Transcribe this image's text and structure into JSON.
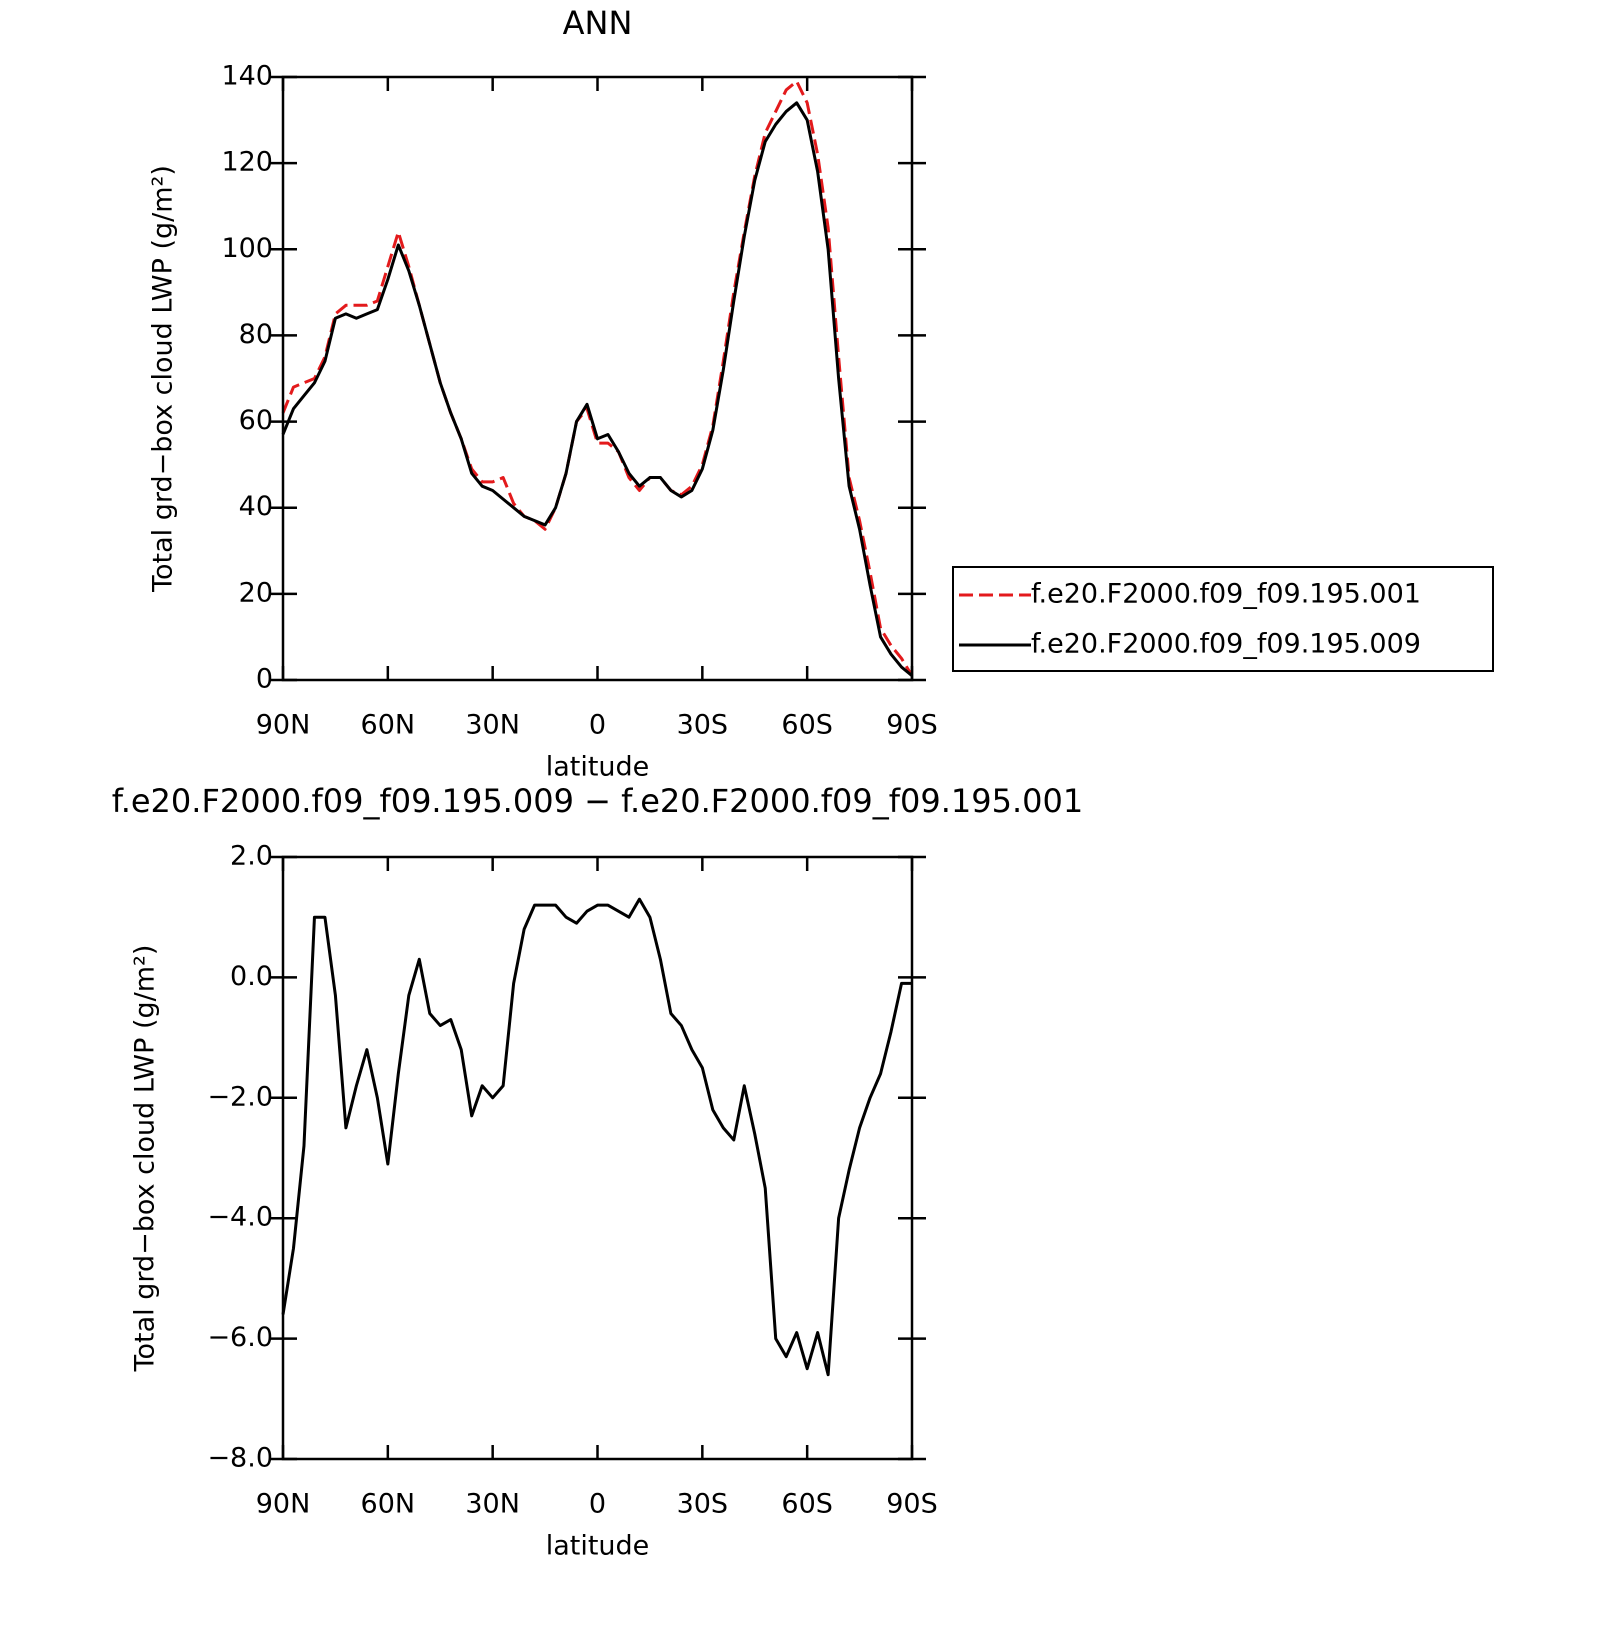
{
  "chart_data": [
    {
      "type": "line",
      "title": "ANN",
      "xlabel": "latitude",
      "ylabel": "Total grd−box cloud LWP (g/m²)",
      "x": [
        90,
        87,
        84,
        81,
        78,
        75,
        72,
        69,
        66,
        63,
        60,
        57,
        54,
        51,
        48,
        45,
        42,
        39,
        36,
        33,
        30,
        27,
        24,
        21,
        18,
        15,
        12,
        9,
        6,
        3,
        0,
        -3,
        -6,
        -9,
        -12,
        -15,
        -18,
        -21,
        -24,
        -27,
        -30,
        -33,
        -36,
        -39,
        -42,
        -45,
        -48,
        -51,
        -54,
        -57,
        -60,
        -63,
        -66,
        -69,
        -72,
        -75,
        -78,
        -81,
        -84,
        -87,
        -90
      ],
      "xlim": [
        90,
        -90
      ],
      "xticks": [
        {
          "value": 90,
          "label": "90N"
        },
        {
          "value": 60,
          "label": "60N"
        },
        {
          "value": 30,
          "label": "30N"
        },
        0,
        {
          "value": -30,
          "label": "30S"
        },
        {
          "value": -60,
          "label": "60S"
        },
        {
          "value": -90,
          "label": "90S"
        }
      ],
      "ylim": [
        0,
        140
      ],
      "yticks": [
        0,
        20,
        40,
        60,
        80,
        100,
        120,
        140
      ],
      "legend": "right",
      "series": [
        {
          "name": "f.e20.F2000.f09_f09.195.001",
          "color": "#e31a1c",
          "linestyle": "dashed",
          "values": [
            62,
            68,
            69,
            70,
            75,
            85,
            87,
            87,
            87,
            88,
            96,
            104,
            96,
            87,
            78,
            69,
            62,
            56,
            49,
            46,
            46,
            47,
            41,
            38,
            37,
            35,
            40,
            48,
            60,
            63,
            55,
            55,
            53,
            47,
            44,
            47,
            47,
            44,
            43,
            45,
            50,
            59,
            74,
            90,
            104,
            117,
            127,
            132,
            137,
            139,
            134,
            122,
            105,
            75,
            47,
            37,
            25,
            12,
            8,
            5,
            1
          ]
        },
        {
          "name": "f.e20.F2000.f09_f09.195.009",
          "color": "#000000",
          "linestyle": "solid",
          "values": [
            57,
            63,
            66,
            69,
            74,
            84,
            85,
            84,
            85,
            86,
            93,
            101,
            95,
            87,
            78,
            69,
            62,
            56,
            48,
            45,
            44,
            42,
            40,
            38,
            37,
            36,
            40,
            48,
            60,
            64,
            56,
            57,
            53,
            48,
            45,
            47,
            47,
            44,
            42.5,
            44,
            49,
            58,
            72,
            88,
            103,
            116,
            125,
            129,
            132,
            134,
            130,
            118,
            100,
            70,
            45,
            35,
            22,
            10,
            6,
            3,
            1
          ]
        }
      ]
    },
    {
      "type": "line",
      "title": "f.e20.F2000.f09_f09.195.009 − f.e20.F2000.f09_f09.195.001",
      "xlabel": "latitude",
      "ylabel": "Total grd−box cloud LWP (g/m²)",
      "x": [
        90,
        87,
        84,
        81,
        78,
        75,
        72,
        69,
        66,
        63,
        60,
        57,
        54,
        51,
        48,
        45,
        42,
        39,
        36,
        33,
        30,
        27,
        24,
        21,
        18,
        15,
        12,
        9,
        6,
        3,
        0,
        -3,
        -6,
        -9,
        -12,
        -15,
        -18,
        -21,
        -24,
        -27,
        -30,
        -33,
        -36,
        -39,
        -42,
        -45,
        -48,
        -51,
        -54,
        -57,
        -60,
        -63,
        -66,
        -69,
        -72,
        -75,
        -78,
        -81,
        -84,
        -87,
        -90
      ],
      "xlim": [
        90,
        -90
      ],
      "xticks": [
        {
          "value": 90,
          "label": "90N"
        },
        {
          "value": 60,
          "label": "60N"
        },
        {
          "value": 30,
          "label": "30N"
        },
        0,
        {
          "value": -30,
          "label": "30S"
        },
        {
          "value": -60,
          "label": "60S"
        },
        {
          "value": -90,
          "label": "90S"
        }
      ],
      "ylim": [
        -8,
        2
      ],
      "yticks": [
        {
          "value": -8,
          "label": "−8.0"
        },
        {
          "value": -6,
          "label": "−6.0"
        },
        {
          "value": -4,
          "label": "−4.0"
        },
        {
          "value": -2,
          "label": "−2.0"
        },
        {
          "value": 0,
          "label": "0.0"
        },
        {
          "value": 2,
          "label": "2.0"
        }
      ],
      "series": [
        {
          "color": "#000000",
          "linestyle": "solid",
          "values": [
            -5.6,
            -4.5,
            -2.8,
            1.0,
            1.0,
            -0.3,
            -2.5,
            -1.8,
            -1.2,
            -2.0,
            -3.1,
            -1.6,
            -0.3,
            0.3,
            -0.6,
            -0.8,
            -0.7,
            -1.2,
            -2.3,
            -1.8,
            -2.0,
            -1.8,
            -0.1,
            0.8,
            1.2,
            1.2,
            1.2,
            1.0,
            0.9,
            1.1,
            1.2,
            1.2,
            1.1,
            1.0,
            1.3,
            1.0,
            0.3,
            -0.6,
            -0.8,
            -1.2,
            -1.5,
            -2.2,
            -2.5,
            -2.7,
            -1.8,
            -2.6,
            -3.5,
            -6.0,
            -6.3,
            -5.9,
            -6.5,
            -5.9,
            -6.6,
            -4.0,
            -3.2,
            -2.5,
            -2.0,
            -1.6,
            -0.9,
            -0.1,
            -0.1
          ]
        }
      ]
    }
  ]
}
